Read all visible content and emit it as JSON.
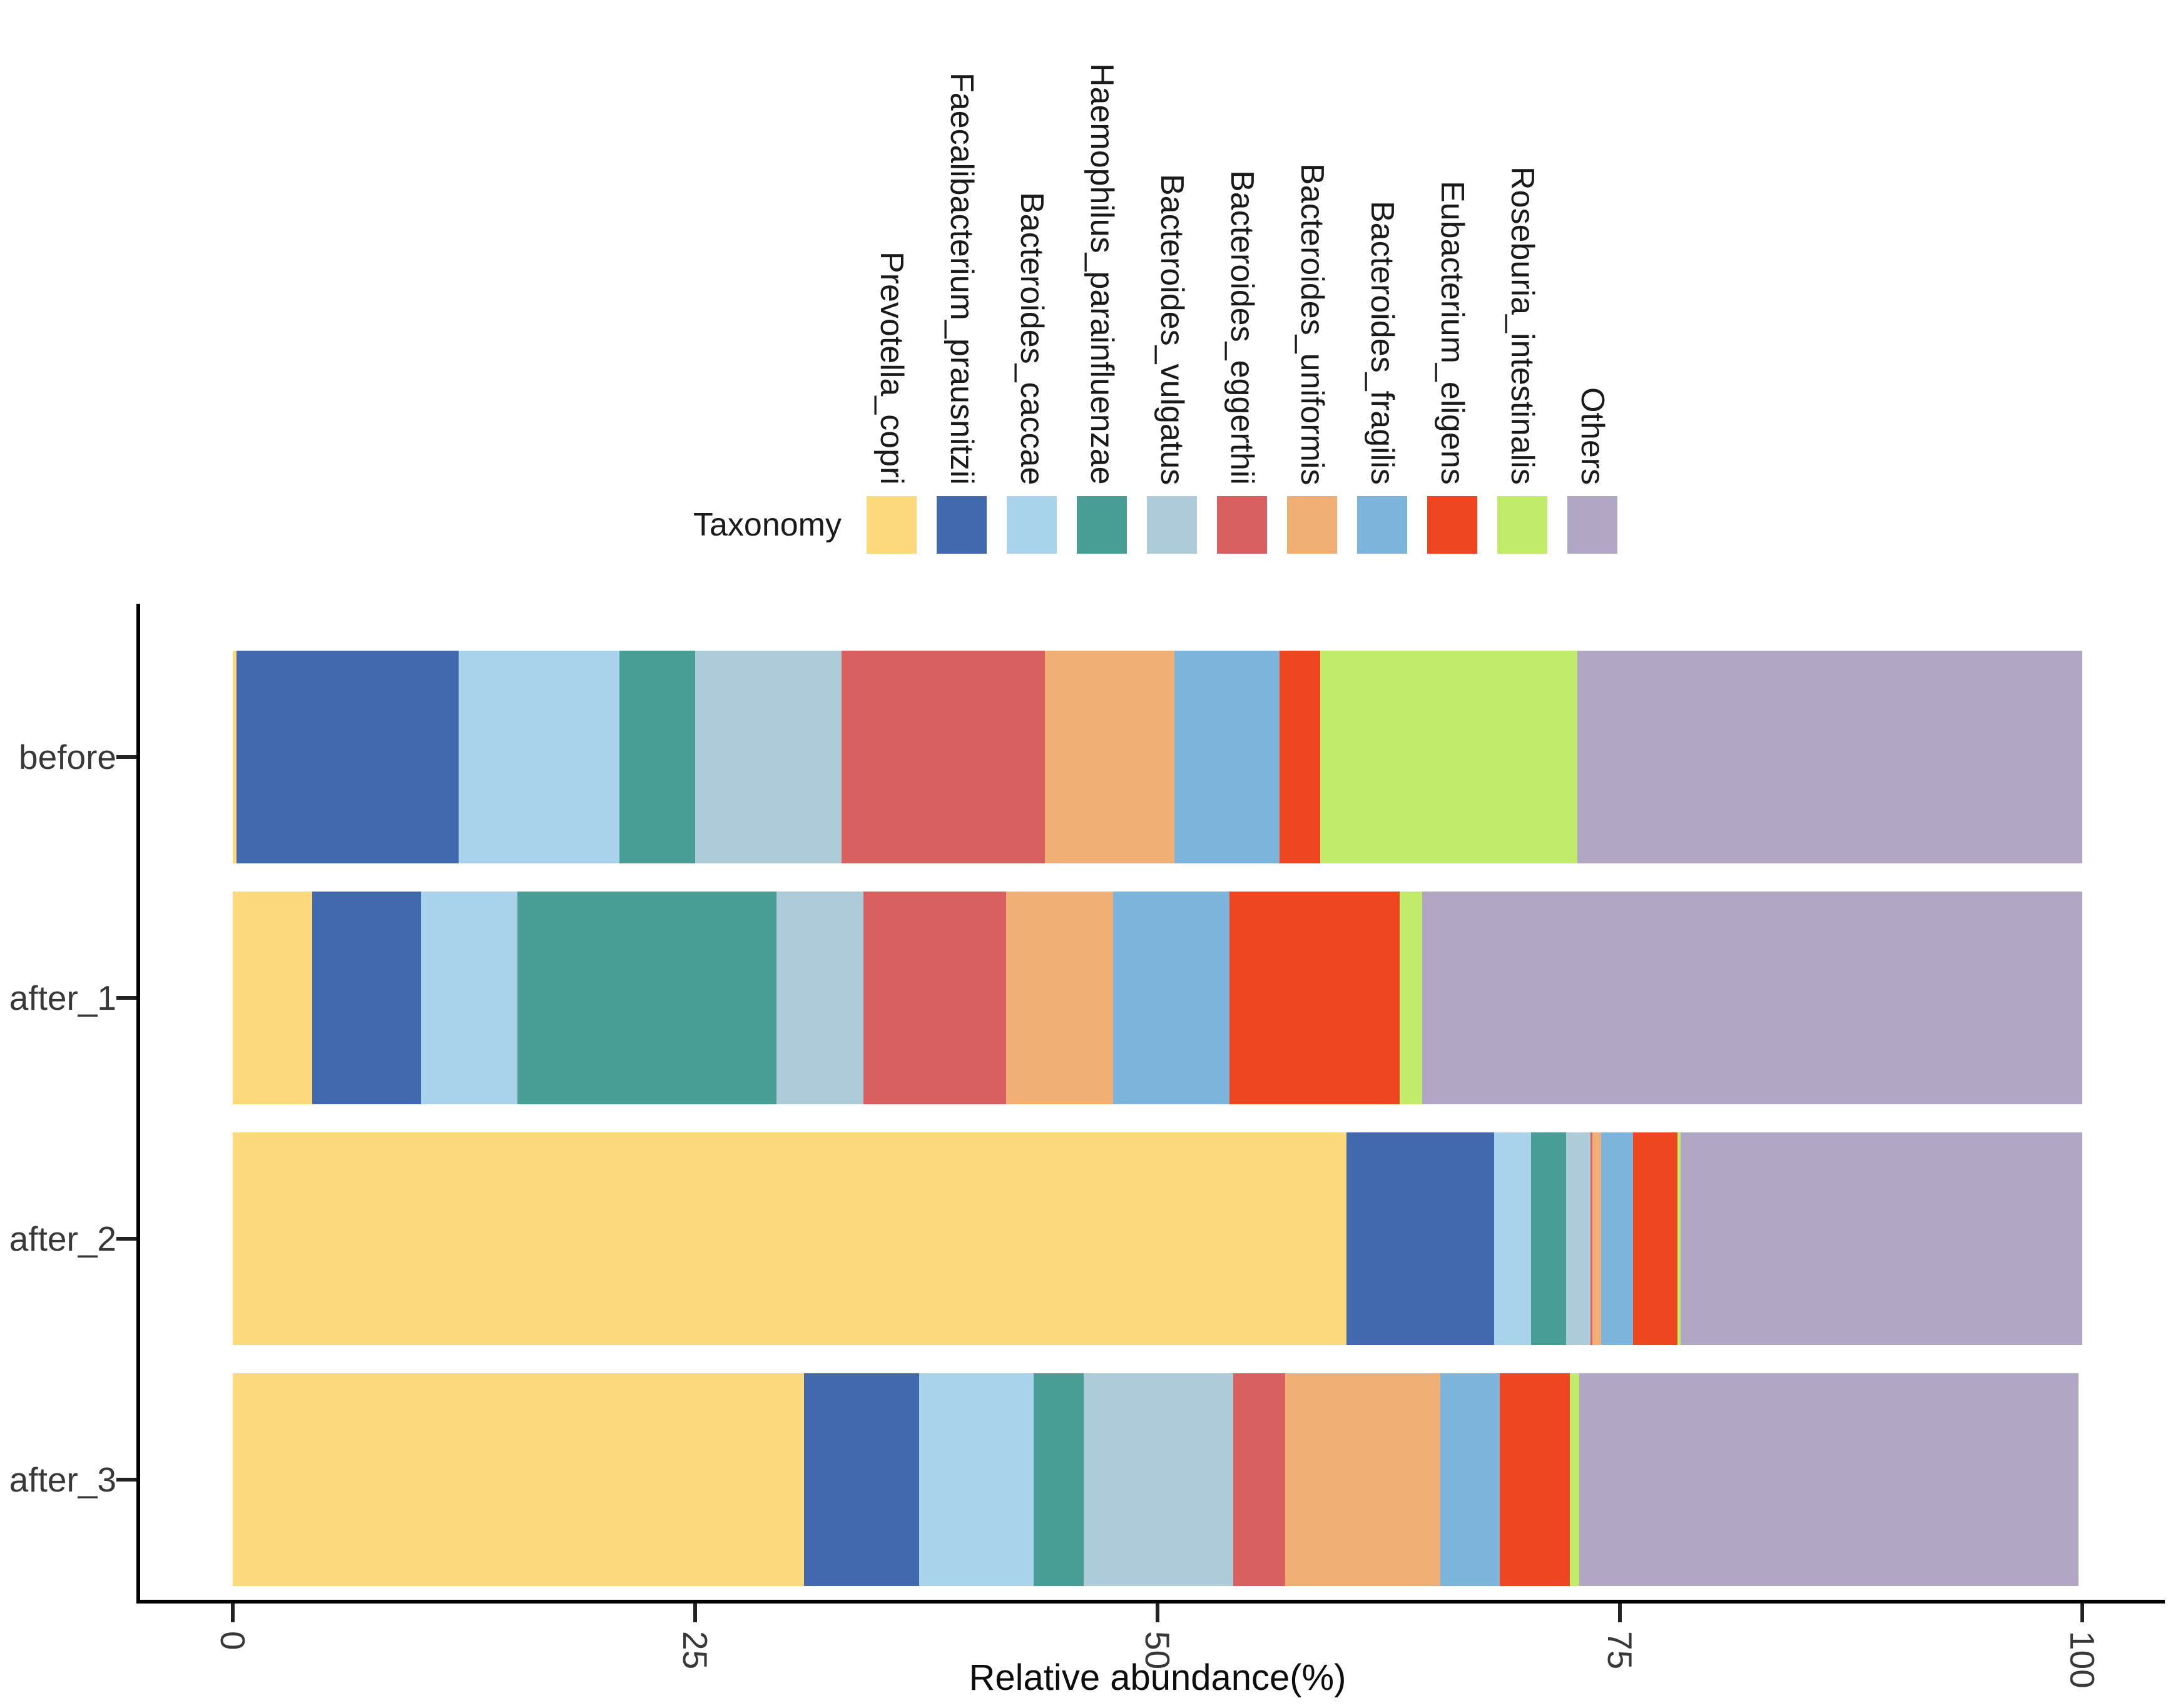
{
  "chart_data": {
    "type": "bar",
    "orientation": "horizontal",
    "stacked": true,
    "title": "",
    "xlabel": "Relative abundance(%)",
    "ylabel": "",
    "xlim": [
      0,
      100
    ],
    "x_ticks": [
      0,
      25,
      50,
      75,
      100
    ],
    "grid": false,
    "legend_title": "Taxonomy",
    "legend_position": "top",
    "categories": [
      "before",
      "after_1",
      "after_2",
      "after_3"
    ],
    "series": [
      {
        "name": "Prevotella_copri",
        "color": "#FBD97C",
        "values": [
          0.2,
          4.3,
          60.2,
          30.9
        ]
      },
      {
        "name": "Faecalibacterium_prausnitzii",
        "color": "#4269AE",
        "values": [
          12.0,
          5.9,
          8.0,
          6.2
        ]
      },
      {
        "name": "Bacteroides_caccae",
        "color": "#A8D3EB",
        "values": [
          8.7,
          5.2,
          2.0,
          6.2
        ]
      },
      {
        "name": "Haemophilus_parainfluenzae",
        "color": "#489E95",
        "values": [
          4.1,
          14.0,
          1.9,
          2.7
        ]
      },
      {
        "name": "Bacteroides_vulgatus",
        "color": "#ADCBD8",
        "values": [
          7.9,
          4.7,
          1.3,
          8.1
        ]
      },
      {
        "name": "Bacteroides_eggerthii",
        "color": "#D86060",
        "values": [
          11.0,
          7.7,
          0.1,
          2.8
        ]
      },
      {
        "name": "Bacteroides_uniformis",
        "color": "#F0B075",
        "values": [
          7.0,
          5.8,
          0.5,
          8.4
        ]
      },
      {
        "name": "Bacteroides_fragilis",
        "color": "#7CB4DB",
        "values": [
          5.7,
          6.3,
          1.7,
          3.2
        ]
      },
      {
        "name": "Eubacterium_eligens",
        "color": "#EE4621",
        "values": [
          2.2,
          9.2,
          2.4,
          3.8
        ]
      },
      {
        "name": "Roseburia_intestinalis",
        "color": "#C1EB6B",
        "values": [
          13.9,
          1.2,
          0.2,
          0.5
        ]
      },
      {
        "name": "Others",
        "color": "#B1A6C3",
        "values": [
          27.3,
          35.7,
          21.7,
          27.0
        ]
      }
    ]
  }
}
